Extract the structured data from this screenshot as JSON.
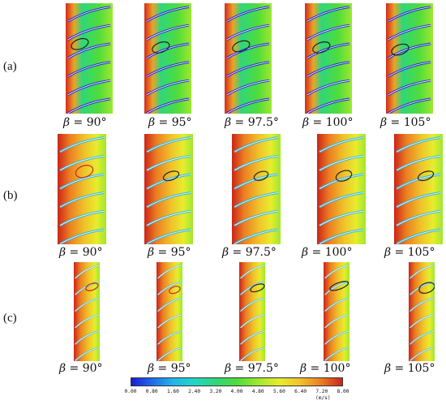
{
  "rows": [
    {
      "label": "(a)",
      "captions": [
        "90°",
        "95°",
        "97.5°",
        "100°",
        "105°"
      ]
    },
    {
      "label": "(b)",
      "captions": [
        "90°",
        "95°",
        "97.5°",
        "100°",
        "105°"
      ]
    },
    {
      "label": "(c)",
      "captions": [
        "90°",
        "95°",
        "97.5°",
        "100°",
        "105°"
      ]
    }
  ],
  "symbol": "β = ",
  "legend": {
    "ticks": [
      "0.00",
      "0.80",
      "1.60",
      "2.40",
      "3.20",
      "4.00",
      "4.80",
      "5.60",
      "6.40",
      "7.20",
      "8.00"
    ],
    "unit": "(m/s)",
    "colors": [
      "#1a1ad8",
      "#1f6de8",
      "#22b6e8",
      "#22d6c4",
      "#2fd67a",
      "#4fdc3c",
      "#9ee82e",
      "#e8ec2c",
      "#f0c22a",
      "#ec7e22",
      "#cc2418"
    ]
  }
}
